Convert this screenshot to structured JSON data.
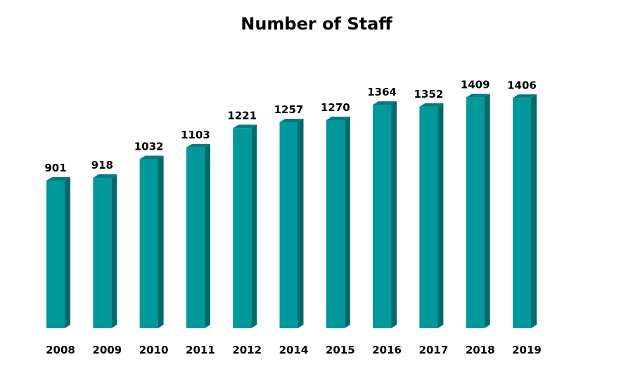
{
  "chart_data": {
    "type": "bar",
    "title": "Number of Staff",
    "xlabel": "",
    "ylabel": "",
    "categories": [
      "2008",
      "2009",
      "2010",
      "2011",
      "2012",
      "2014",
      "2015",
      "2016",
      "2017",
      "2018",
      "2019"
    ],
    "series": [
      {
        "values": [
          901,
          918,
          1032,
          1103,
          1221,
          1257,
          1270,
          1364,
          1352,
          1409,
          1406
        ]
      }
    ],
    "data_labels": [
      "901",
      "918",
      "1032",
      "1103",
      "1221",
      "1257",
      "1270",
      "1364",
      "1352",
      "1409",
      "1406"
    ],
    "ylim": [
      0,
      1409
    ],
    "grid": false,
    "legend": "none",
    "style": "3d-column",
    "colors": {
      "bar_front": "#00989a",
      "bar_side": "#006b6d",
      "bar_top": "#007d7f"
    }
  }
}
